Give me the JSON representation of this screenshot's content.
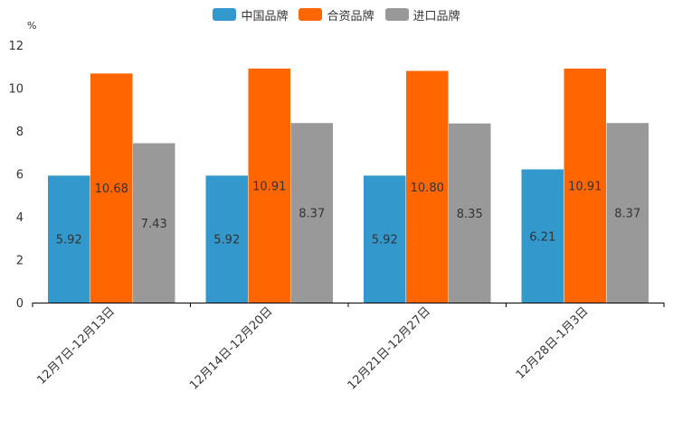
{
  "chart_data": {
    "type": "bar",
    "title": "",
    "xlabel": "",
    "ylabel": "%",
    "ylim": [
      0,
      12
    ],
    "yticks": [
      0,
      2,
      4,
      6,
      8,
      10,
      12
    ],
    "categories": [
      "12月7日-12月13日",
      "12月14日-12月20日",
      "12月21日-12月27日",
      "12月28日-1月3日"
    ],
    "series": [
      {
        "name": "中国品牌",
        "color": "#3399CC",
        "values": [
          5.92,
          5.92,
          5.92,
          6.21
        ]
      },
      {
        "name": "合资品牌",
        "color": "#FF6600",
        "values": [
          10.68,
          10.91,
          10.8,
          10.91
        ]
      },
      {
        "name": "进口品牌",
        "color": "#999999",
        "values": [
          7.43,
          8.37,
          8.35,
          8.37
        ]
      }
    ],
    "legend_position": "top-center",
    "grid": false
  }
}
